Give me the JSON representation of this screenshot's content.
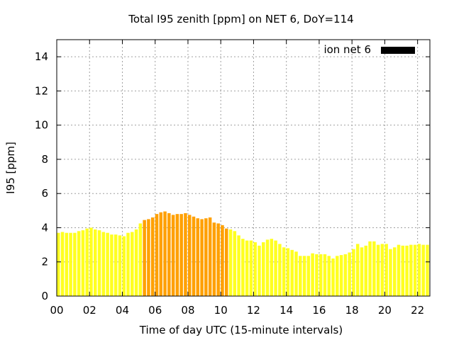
{
  "chart_data": {
    "type": "bar",
    "title": "Total I95 zenith [ppm] on NET 6, DoY=114",
    "xlabel": "Time of day UTC (15-minute intervals)",
    "ylabel": "I95 [ppm]",
    "ylim": [
      0,
      15
    ],
    "xlim": [
      0,
      22.75
    ],
    "grid": true,
    "legend_position": "top-right",
    "x_ticks": [
      "00",
      "02",
      "04",
      "06",
      "08",
      "10",
      "12",
      "14",
      "16",
      "18",
      "20",
      "22"
    ],
    "y_ticks": [
      "0",
      "2",
      "4",
      "6",
      "8",
      "10",
      "12",
      "14"
    ],
    "series": [
      {
        "name": "ion net 6",
        "interval_hours": 0.25,
        "start_hour": 0,
        "values": [
          3.7,
          3.75,
          3.7,
          3.7,
          3.7,
          3.8,
          3.85,
          3.95,
          4.0,
          3.9,
          3.85,
          3.75,
          3.7,
          3.6,
          3.6,
          3.55,
          3.5,
          3.7,
          3.75,
          3.9,
          4.25,
          4.45,
          4.5,
          4.6,
          4.8,
          4.9,
          4.95,
          4.85,
          4.75,
          4.8,
          4.8,
          4.85,
          4.75,
          4.65,
          4.55,
          4.5,
          4.55,
          4.6,
          4.3,
          4.25,
          4.15,
          3.95,
          3.9,
          3.8,
          3.55,
          3.35,
          3.25,
          3.25,
          3.15,
          2.95,
          3.15,
          3.3,
          3.35,
          3.25,
          3.05,
          2.85,
          2.8,
          2.7,
          2.6,
          2.35,
          2.35,
          2.35,
          2.5,
          2.45,
          2.45,
          2.45,
          2.35,
          2.2,
          2.35,
          2.4,
          2.45,
          2.55,
          2.75,
          3.05,
          2.85,
          2.95,
          3.2,
          3.2,
          3.0,
          3.05,
          3.05,
          2.75,
          2.85,
          3.0,
          2.95,
          2.95,
          3.0,
          3.0,
          3.05,
          3.0,
          3.0
        ],
        "highlight_range_hours": [
          5.25,
          10.5
        ],
        "color_normal": "#ffff20",
        "color_highlight": "#ffa000",
        "legend_color": "#000000"
      }
    ]
  }
}
